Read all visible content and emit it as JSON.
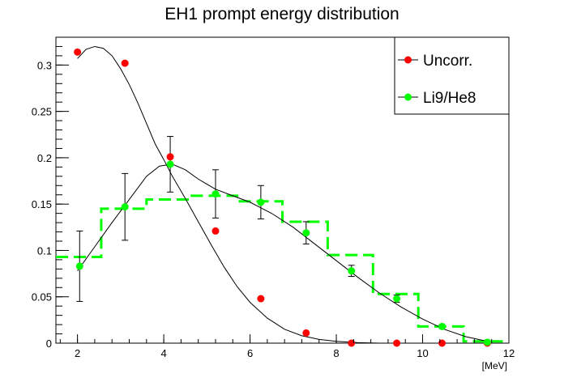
{
  "chart_data": {
    "type": "scatter",
    "title": "EH1 prompt energy distribution",
    "xlabel": "[MeV]",
    "ylabel": "",
    "xlim": [
      1.5,
      12
    ],
    "ylim": [
      0,
      0.33
    ],
    "x_ticks": [
      2,
      4,
      6,
      8,
      10,
      12
    ],
    "y_ticks": [
      0,
      0.05,
      0.1,
      0.15,
      0.2,
      0.25,
      0.3
    ],
    "x_tick_labels": [
      "2",
      "4",
      "6",
      "8",
      "10",
      "12"
    ],
    "y_tick_labels": [
      "0",
      "0.05",
      "0.1",
      "0.15",
      "0.2",
      "0.25",
      "0.3"
    ],
    "legend_placement": "top-right",
    "series": [
      {
        "name": "Uncorr.",
        "color": "#ff0000",
        "marker": "circle",
        "x": [
          2.0,
          3.1,
          4.15,
          5.2,
          6.25,
          7.3,
          8.35,
          9.4,
          10.45,
          11.5
        ],
        "y": [
          0.314,
          0.302,
          0.201,
          0.121,
          0.048,
          0.011,
          0.0,
          0.0,
          0.0,
          0.0
        ],
        "fit_curve": {
          "color": "#000000",
          "x": [
            2.0,
            2.2,
            2.4,
            2.6,
            2.8,
            3.0,
            3.2,
            3.4,
            3.6,
            3.8,
            4.0,
            4.2,
            4.5,
            4.8,
            5.1,
            5.4,
            5.7,
            6.0,
            6.4,
            6.8,
            7.2,
            7.6,
            8.0,
            8.5,
            9.0
          ],
          "y": [
            0.307,
            0.317,
            0.32,
            0.318,
            0.31,
            0.296,
            0.279,
            0.259,
            0.237,
            0.215,
            0.198,
            0.18,
            0.156,
            0.131,
            0.106,
            0.082,
            0.061,
            0.044,
            0.027,
            0.015,
            0.008,
            0.004,
            0.002,
            0.0005,
            0.0
          ]
        }
      },
      {
        "name": "Li9/He8",
        "color": "#00ff00",
        "marker": "circle",
        "x": [
          2.05,
          3.1,
          4.15,
          5.2,
          6.25,
          7.3,
          8.35,
          9.4,
          10.45,
          11.5
        ],
        "y": [
          0.083,
          0.147,
          0.193,
          0.161,
          0.152,
          0.119,
          0.078,
          0.048,
          0.018,
          0.001
        ],
        "err": [
          0.038,
          0.036,
          0.03,
          0.026,
          0.018,
          0.012,
          0.006,
          0.004,
          0.002,
          0.001
        ],
        "fit_curve": {
          "color": "#000000",
          "x": [
            2.0,
            2.4,
            2.8,
            3.2,
            3.6,
            3.9,
            4.2,
            4.5,
            4.8,
            5.2,
            5.6,
            6.0,
            6.5,
            7.0,
            7.5,
            8.0,
            8.5,
            9.0,
            9.5,
            10.0,
            10.5,
            11.0,
            11.5
          ],
          "y": [
            0.078,
            0.104,
            0.13,
            0.155,
            0.18,
            0.191,
            0.193,
            0.187,
            0.177,
            0.166,
            0.159,
            0.152,
            0.14,
            0.125,
            0.107,
            0.089,
            0.071,
            0.054,
            0.039,
            0.026,
            0.015,
            0.007,
            0.002
          ]
        },
        "histogram": {
          "color": "#00ff00",
          "style": "dashed",
          "bin_edges": [
            1.5,
            2.55,
            3.6,
            4.65,
            5.7,
            6.75,
            7.8,
            8.85,
            9.9,
            10.95,
            12.0
          ],
          "values": [
            0.093,
            0.145,
            0.155,
            0.159,
            0.153,
            0.131,
            0.095,
            0.053,
            0.018,
            0.002
          ]
        }
      }
    ]
  }
}
